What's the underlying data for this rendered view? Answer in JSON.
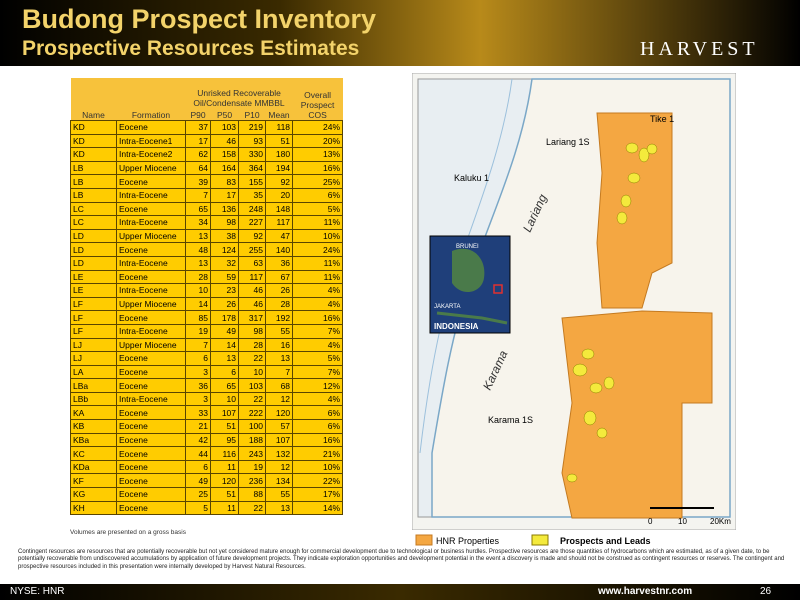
{
  "header": {
    "title": "Budong Prospect Inventory",
    "subtitle": "Prospective Resources Estimates",
    "logo": "HARVEST"
  },
  "table": {
    "columns": {
      "name": "Name",
      "formation": "Formation",
      "group": "Unrisked Recoverable Oil/Condensate MMBBL",
      "p90": "P90",
      "p50": "P50",
      "p10": "P10",
      "mean": "Mean",
      "cos": "Overall Prospect COS"
    },
    "rows": [
      [
        "KD",
        "Eocene",
        "37",
        "103",
        "219",
        "118",
        "24%"
      ],
      [
        "KD",
        "Intra-Eocene1",
        "17",
        "46",
        "93",
        "51",
        "20%"
      ],
      [
        "KD",
        "Intra-Eocene2",
        "62",
        "158",
        "330",
        "180",
        "13%"
      ],
      [
        "LB",
        "Upper Miocene",
        "64",
        "164",
        "364",
        "194",
        "16%"
      ],
      [
        "LB",
        "Eocene",
        "39",
        "83",
        "155",
        "92",
        "25%"
      ],
      [
        "LB",
        "Intra-Eocene",
        "7",
        "17",
        "35",
        "20",
        "6%"
      ],
      [
        "LC",
        "Eocene",
        "65",
        "136",
        "248",
        "148",
        "5%"
      ],
      [
        "LC",
        "Intra-Eocene",
        "34",
        "98",
        "227",
        "117",
        "11%"
      ],
      [
        "LD",
        "Upper Miocene",
        "13",
        "38",
        "92",
        "47",
        "10%"
      ],
      [
        "LD",
        "Eocene",
        "48",
        "124",
        "255",
        "140",
        "24%"
      ],
      [
        "LD",
        "Intra-Eocene",
        "13",
        "32",
        "63",
        "36",
        "11%"
      ],
      [
        "LE",
        "Eocene",
        "28",
        "59",
        "117",
        "67",
        "11%"
      ],
      [
        "LE",
        "Intra-Eocene",
        "10",
        "23",
        "46",
        "26",
        "4%"
      ],
      [
        "LF",
        "Upper Miocene",
        "14",
        "26",
        "46",
        "28",
        "4%"
      ],
      [
        "LF",
        "Eocene",
        "85",
        "178",
        "317",
        "192",
        "16%"
      ],
      [
        "LF",
        "Intra-Eocene",
        "19",
        "49",
        "98",
        "55",
        "7%"
      ],
      [
        "LJ",
        "Upper Miocene",
        "7",
        "14",
        "28",
        "16",
        "4%"
      ],
      [
        "LJ",
        "Eocene",
        "6",
        "13",
        "22",
        "13",
        "5%"
      ],
      [
        "LA",
        "Eocene",
        "3",
        "6",
        "10",
        "7",
        "7%"
      ],
      [
        "LBa",
        "Eocene",
        "36",
        "65",
        "103",
        "68",
        "12%"
      ],
      [
        "LBb",
        "Intra-Eocene",
        "3",
        "10",
        "22",
        "12",
        "4%"
      ],
      [
        "KA",
        "Eocene",
        "33",
        "107",
        "222",
        "120",
        "6%"
      ],
      [
        "KB",
        "Eocene",
        "21",
        "51",
        "100",
        "57",
        "6%"
      ],
      [
        "KBa",
        "Eocene",
        "42",
        "95",
        "188",
        "107",
        "16%"
      ],
      [
        "KC",
        "Eocene",
        "44",
        "116",
        "243",
        "132",
        "21%"
      ],
      [
        "KDa",
        "Eocene",
        "6",
        "11",
        "19",
        "12",
        "10%"
      ],
      [
        "KF",
        "Eocene",
        "49",
        "120",
        "236",
        "134",
        "22%"
      ],
      [
        "KG",
        "Eocene",
        "25",
        "51",
        "88",
        "55",
        "17%"
      ],
      [
        "KH",
        "Eocene",
        "5",
        "11",
        "22",
        "13",
        "14%"
      ]
    ],
    "note": "Volumes are presented on a gross basis"
  },
  "map": {
    "wells": [
      "Tike 1",
      "Lariang 1S",
      "Kaluku 1",
      "Karama 1S"
    ],
    "rivers": [
      "Lariang",
      "Karama"
    ],
    "inset": [
      "BRUNEI",
      "JAKARTA",
      "INDONESIA"
    ],
    "scale": [
      "0",
      "10",
      "20Km"
    ],
    "legend": [
      "HNR Properties",
      "Prospects and Leads"
    ]
  },
  "footer": {
    "disclaimer": "Contingent resources are resources that are potentially recoverable but not yet considered mature enough for commercial development due to technological or business hurdles. Prospective resources are those quantities of hydrocarbons which are estimated, as of a given date, to be potentially recoverable from undiscovered accumulations by application of future development projects. They indicate exploration opportunities and development potential in the event a discovery is made and should not be construed as contingent resources or reserves. The contingent and prospective resources included in this presentation were internally developed by Harvest Natural Resources.",
    "ticker": "NYSE: HNR",
    "website": "www.harvestnr.com",
    "page": "26"
  }
}
